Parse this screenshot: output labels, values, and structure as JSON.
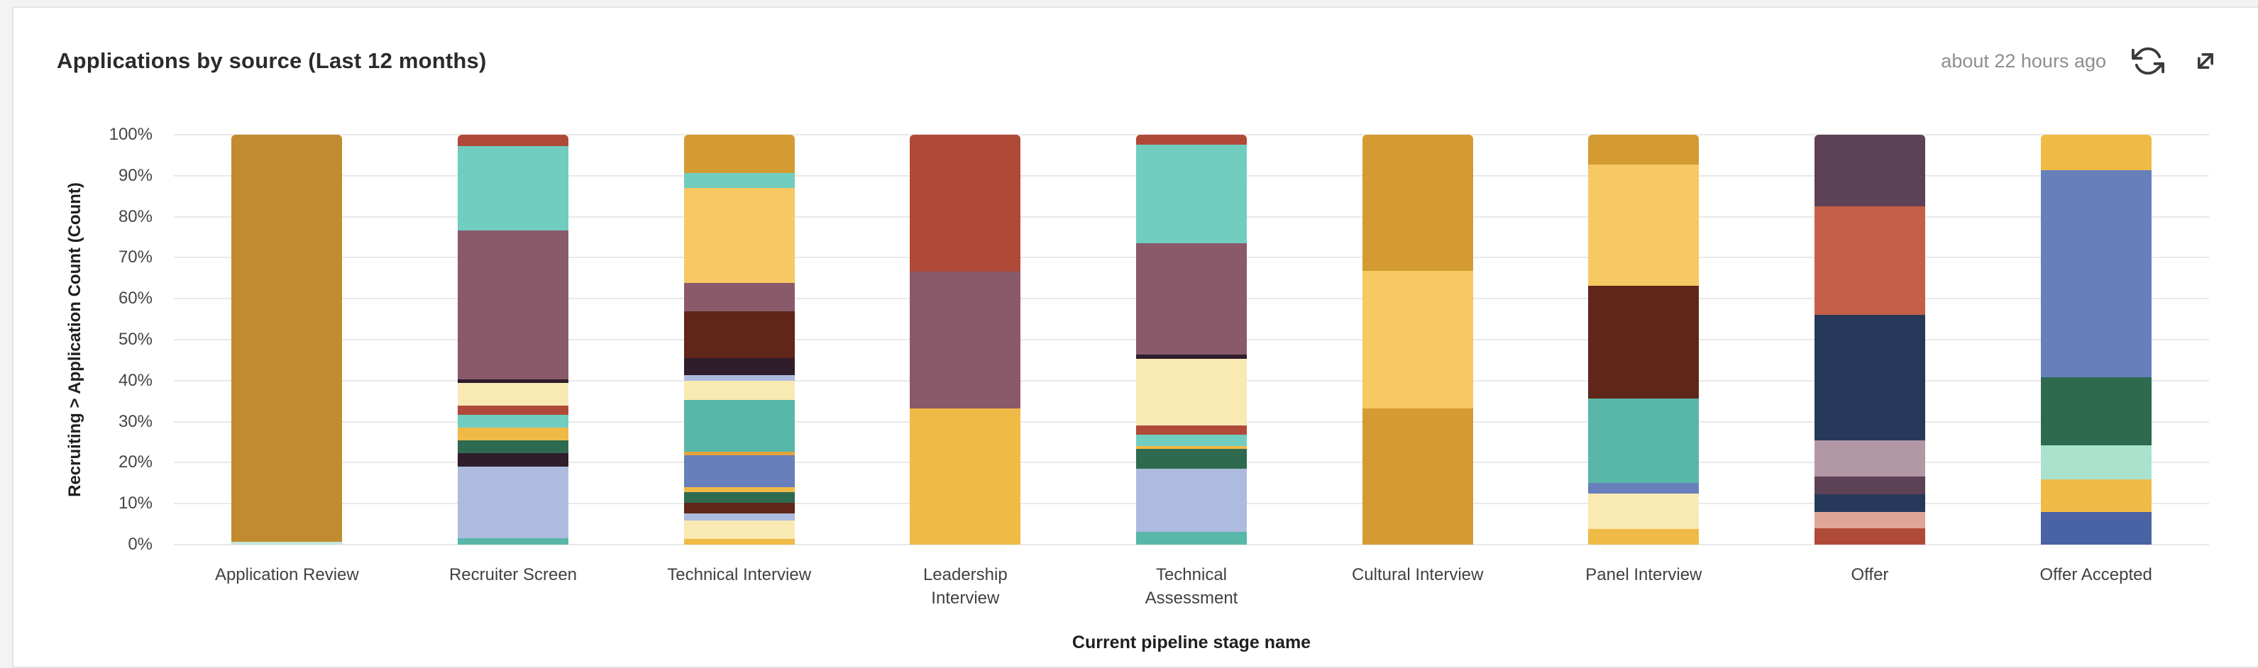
{
  "header": {
    "title": "Applications by source (Last 12 months)",
    "updated": "about 22 hours ago",
    "icons": [
      {
        "name": "refresh-icon",
        "meaning": "refresh widget"
      },
      {
        "name": "expand-icon",
        "meaning": "expand widget"
      }
    ]
  },
  "chart_data": {
    "type": "bar",
    "variant": "stacked-percent-column",
    "title": "Applications by source (Last 12 months)",
    "xlabel": "Current pipeline stage name",
    "ylabel": "Recruiting > Application Count (Count)",
    "ylim": [
      0,
      100
    ],
    "y_ticks": [
      "0%",
      "10%",
      "20%",
      "30%",
      "40%",
      "50%",
      "60%",
      "70%",
      "80%",
      "90%",
      "100%"
    ],
    "grid": "horizontal-light",
    "legend": "none",
    "categories": [
      "Application Review",
      "Recruiter Screen",
      "Technical Interview",
      "Leadership Interview",
      "Technical Assessment",
      "Cultural Interview",
      "Panel Interview",
      "Offer",
      "Offer Accepted"
    ],
    "x_label_lines": [
      [
        "Application Review"
      ],
      [
        "Recruiter Screen"
      ],
      [
        "Technical Interview"
      ],
      [
        "Leadership",
        "Interview"
      ],
      [
        "Technical",
        "Assessment"
      ],
      [
        "Cultural Interview"
      ],
      [
        "Panel Interview"
      ],
      [
        "Offer"
      ],
      [
        "Offer Accepted"
      ]
    ],
    "segment_note": "segments listed top to bottom; value = percent of column height; sources are unlabeled in the widget (colors only)",
    "bars": [
      {
        "category": "Application Review",
        "segments": [
          {
            "color": "#C18B2F",
            "value": 99.3
          },
          {
            "color": "#C7E7DA",
            "value": 0.7
          }
        ]
      },
      {
        "category": "Recruiter Screen",
        "segments": [
          {
            "color": "#B04A38",
            "value": 2.7
          },
          {
            "color": "#70CDBF",
            "value": 20.6
          },
          {
            "color": "#8A5A6B",
            "value": 36.4
          },
          {
            "color": "#2F1D2B",
            "value": 0.8
          },
          {
            "color": "#F9E9B3",
            "value": 5.5
          },
          {
            "color": "#B04A38",
            "value": 2.3
          },
          {
            "color": "#70CDBF",
            "value": 3.2
          },
          {
            "color": "#F0BA47",
            "value": 3.1
          },
          {
            "color": "#2E6A50",
            "value": 3.1
          },
          {
            "color": "#2F1D2B",
            "value": 3.2
          },
          {
            "color": "#ADBBDF",
            "value": 17.6
          },
          {
            "color": "#58B7A8",
            "value": 1.5
          }
        ]
      },
      {
        "category": "Technical Interview",
        "segments": [
          {
            "color": "#D49B33",
            "value": 9.3
          },
          {
            "color": "#70CDBF",
            "value": 3.6
          },
          {
            "color": "#F6C963",
            "value": 23.2
          },
          {
            "color": "#8A5A6B",
            "value": 6.9
          },
          {
            "color": "#5F2619",
            "value": 11.5
          },
          {
            "color": "#2F1D2B",
            "value": 4.1
          },
          {
            "color": "#ADBBDF",
            "value": 1.4
          },
          {
            "color": "#F9E9B3",
            "value": 4.6
          },
          {
            "color": "#58B7A8",
            "value": 12.7
          },
          {
            "color": "#E2A43C",
            "value": 0.8
          },
          {
            "color": "#6780BB",
            "value": 7.8
          },
          {
            "color": "#F0BA47",
            "value": 1.2
          },
          {
            "color": "#2E6A50",
            "value": 2.6
          },
          {
            "color": "#5F2619",
            "value": 2.7
          },
          {
            "color": "#ADBBDF",
            "value": 1.7
          },
          {
            "color": "#F9E9B3",
            "value": 4.5
          },
          {
            "color": "#F0BA47",
            "value": 1.4
          }
        ]
      },
      {
        "category": "Leadership Interview",
        "segments": [
          {
            "color": "#B04A38",
            "value": 33.4
          },
          {
            "color": "#8A5A6B",
            "value": 33.3
          },
          {
            "color": "#F0BA47",
            "value": 33.3
          }
        ]
      },
      {
        "category": "Technical Assessment",
        "segments": [
          {
            "color": "#B04A38",
            "value": 2.4
          },
          {
            "color": "#70CDBF",
            "value": 24.1
          },
          {
            "color": "#8A5A6B",
            "value": 27.2
          },
          {
            "color": "#2F1D2B",
            "value": 0.9
          },
          {
            "color": "#F9E9B3",
            "value": 16.3
          },
          {
            "color": "#B04A38",
            "value": 2.3
          },
          {
            "color": "#70CDBF",
            "value": 2.7
          },
          {
            "color": "#F0BA47",
            "value": 0.8
          },
          {
            "color": "#2E6A50",
            "value": 4.8
          },
          {
            "color": "#ADBBDF",
            "value": 15.3
          },
          {
            "color": "#58B7A8",
            "value": 3.2
          }
        ]
      },
      {
        "category": "Cultural Interview",
        "segments": [
          {
            "color": "#D49B33",
            "value": 33.3
          },
          {
            "color": "#F6C963",
            "value": 33.4
          },
          {
            "color": "#D49B33",
            "value": 33.3
          }
        ]
      },
      {
        "category": "Panel Interview",
        "segments": [
          {
            "color": "#D49B33",
            "value": 7.2
          },
          {
            "color": "#F6C963",
            "value": 29.7
          },
          {
            "color": "#5F2619",
            "value": 27.4
          },
          {
            "color": "#58B7A8",
            "value": 20.6
          },
          {
            "color": "#6780BB",
            "value": 2.7
          },
          {
            "color": "#F9E9B3",
            "value": 8.6
          },
          {
            "color": "#F0BA47",
            "value": 3.8
          }
        ]
      },
      {
        "category": "Offer",
        "segments": [
          {
            "color": "#5D4155",
            "value": 17.5
          },
          {
            "color": "#C65F47",
            "value": 26.5
          },
          {
            "color": "#27395A",
            "value": 30.6
          },
          {
            "color": "#B297A5",
            "value": 8.8
          },
          {
            "color": "#5D4155",
            "value": 4.3
          },
          {
            "color": "#27395A",
            "value": 4.3
          },
          {
            "color": "#DFA697",
            "value": 4.1
          },
          {
            "color": "#B04A38",
            "value": 3.9
          }
        ]
      },
      {
        "category": "Offer Accepted",
        "segments": [
          {
            "color": "#F0BA47",
            "value": 8.6
          },
          {
            "color": "#6780BB",
            "value": 50.5
          },
          {
            "color": "#2E6A50",
            "value": 16.7
          },
          {
            "color": "#A9E3CE",
            "value": 8.2
          },
          {
            "color": "#F0BA47",
            "value": 8.0
          },
          {
            "color": "#4A63A4",
            "value": 8.0
          }
        ]
      }
    ]
  },
  "colors": {
    "card_background": "#ffffff",
    "page_background": "#f3f3f3",
    "card_border": "#e4e4e4",
    "gridline": "#e9e9e9",
    "title_text": "#2b2b2b",
    "muted_text": "#8e8e8e",
    "axis_text": "#454545",
    "icon_stroke": "#3a3a3a"
  }
}
